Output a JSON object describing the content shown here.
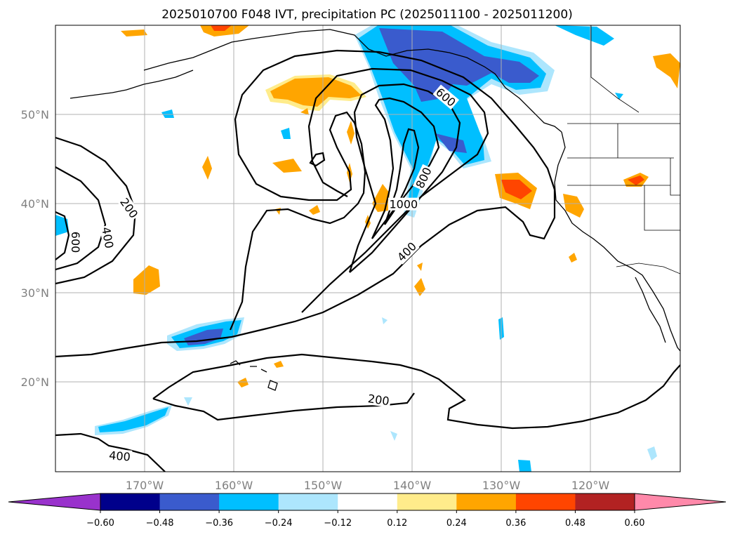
{
  "figure": {
    "title": "2025010700 F048 IVT, precipitation PC (2025011100 - 2025011200)"
  },
  "map": {
    "lon_range": [
      -180,
      -110
    ],
    "lat_range": [
      10,
      60
    ],
    "lat_labels": [
      {
        "lat": 50,
        "text": "50°N"
      },
      {
        "lat": 40,
        "text": "40°N"
      },
      {
        "lat": 30,
        "text": "30°N"
      },
      {
        "lat": 20,
        "text": "20°N"
      }
    ],
    "lon_labels": [
      {
        "lon": -170,
        "text": "170°W"
      },
      {
        "lon": -160,
        "text": "160°W"
      },
      {
        "lon": -150,
        "text": "150°W"
      },
      {
        "lon": -140,
        "text": "140°W"
      },
      {
        "lon": -130,
        "text": "130°W"
      },
      {
        "lon": -120,
        "text": "120°W"
      }
    ],
    "contour_labels": [
      {
        "text": "200",
        "lon": -171.8,
        "lat": 39.5,
        "rot": 55
      },
      {
        "text": "400",
        "lon": -174.2,
        "lat": 36.2,
        "rot": 80
      },
      {
        "text": "600",
        "lon": -177.8,
        "lat": 35.7,
        "rot": 90
      },
      {
        "text": "600",
        "lon": -136.3,
        "lat": 51.9,
        "rot": 40
      },
      {
        "text": "800",
        "lon": -138.7,
        "lat": 42.9,
        "rot": -65
      },
      {
        "text": "1000",
        "lon": -141.0,
        "lat": 39.9,
        "rot": 0
      },
      {
        "text": "400",
        "lon": -140.6,
        "lat": 34.6,
        "rot": -45
      },
      {
        "text": "200",
        "lon": -143.8,
        "lat": 18.0,
        "rot": 8
      },
      {
        "text": "400",
        "lon": -172.8,
        "lat": 11.7,
        "rot": 5
      }
    ]
  },
  "colorbar": {
    "colors": [
      "#9932cc",
      "#00008b",
      "#3a5bcd",
      "#00bfff",
      "#ade6fd",
      "#ffffff",
      "#ffec8b",
      "#ffa500",
      "#ff4500",
      "#b22222",
      "#ff89aa"
    ],
    "tick_labels": [
      "−0.60",
      "−0.48",
      "−0.36",
      "−0.24",
      "−0.12",
      "0.12",
      "0.24",
      "0.36",
      "0.48",
      "0.60"
    ]
  }
}
